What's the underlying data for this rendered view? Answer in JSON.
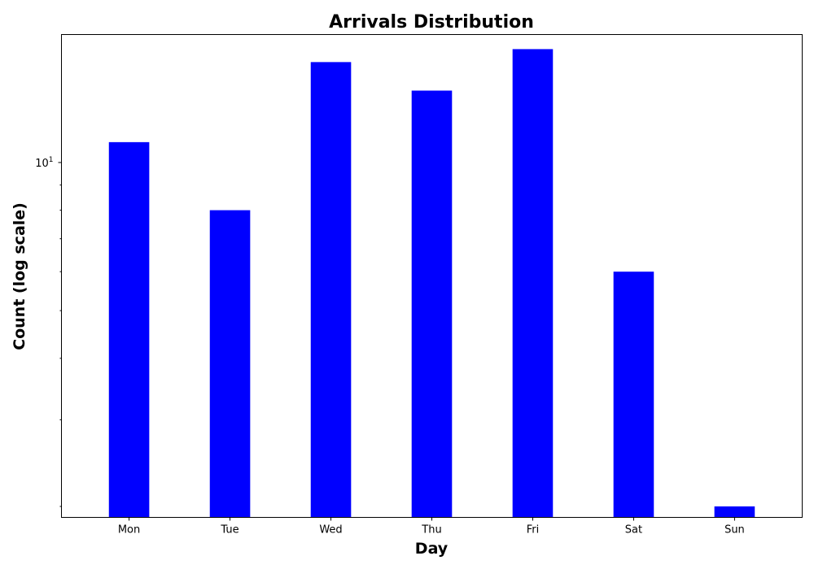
{
  "chart_data": {
    "type": "bar",
    "title": "Arrivals Distribution",
    "xlabel": "Day",
    "ylabel": "Count (log scale)",
    "categories": [
      "Mon",
      "Tue",
      "Wed",
      "Thu",
      "Fri",
      "Sat",
      "Sun"
    ],
    "values": [
      11,
      8,
      16,
      14,
      17,
      6,
      2
    ],
    "yscale": "log",
    "ylim": [
      1.9,
      18.2
    ],
    "y_major_ticks": [
      {
        "value": 10,
        "base": "10",
        "exponent": "1"
      }
    ],
    "y_minor_ticks": [
      2,
      3,
      4,
      5,
      6,
      7,
      8,
      9
    ],
    "grid": false,
    "legend": "none",
    "colors": {
      "bar": "#0000ff",
      "axis": "#000000",
      "background": "#ffffff"
    }
  }
}
